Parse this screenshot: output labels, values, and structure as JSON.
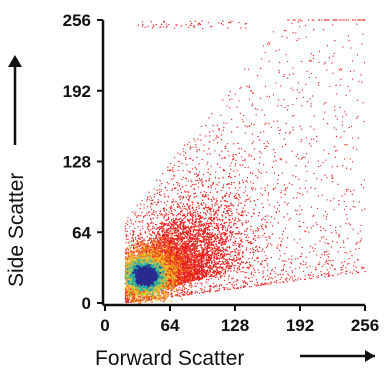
{
  "chart_data": {
    "type": "scatter",
    "plot_kind": "density-colored flow cytometry dot plot",
    "xlabel": "Forward Scatter",
    "ylabel": "Side Scatter",
    "xlim": [
      0,
      256
    ],
    "ylim": [
      0,
      256
    ],
    "x_ticks": [
      "0",
      "64",
      "128",
      "192",
      "256"
    ],
    "y_ticks": [
      "0",
      "64",
      "128",
      "192",
      "256"
    ],
    "x_tick_values": [
      0,
      64,
      128,
      192,
      256
    ],
    "y_tick_values": [
      0,
      64,
      128,
      192,
      256
    ],
    "grid": false,
    "legend": "none",
    "axis_arrows": true,
    "density_colors": {
      "low": "#e8201e",
      "low_mid": "#f06a1c",
      "mid": "#f7c32a",
      "high_mid": "#7cc576",
      "high": "#1fa7a6",
      "peak": "#2a2a8f"
    },
    "populations": [
      {
        "description": "dense core cluster",
        "center": [
          40,
          25
        ],
        "spread": [
          10,
          6
        ],
        "density": "peak"
      },
      {
        "description": "main population halo",
        "center": [
          55,
          35
        ],
        "spread": [
          30,
          22
        ],
        "density": "mid"
      },
      {
        "description": "sparse diffuse scatter",
        "center": [
          110,
          110
        ],
        "spread": [
          70,
          80
        ],
        "density": "low"
      }
    ],
    "x_min_observed": 20,
    "x_max_observed": 256,
    "y_min_observed": 0,
    "y_max_observed": 256
  }
}
